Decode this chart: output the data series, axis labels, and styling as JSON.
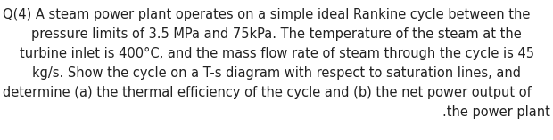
{
  "background_color": "#ffffff",
  "text_color": "#222222",
  "lines": [
    "Q(4) A steam power plant operates on a simple ideal Rankine cycle between the",
    "pressure limits of 3.5 MPa and 75kPa. The temperature of the steam at the",
    "turbine inlet is 400°C, and the mass flow rate of steam through the cycle is 45",
    "kg/s. Show the cycle on a T-s diagram with respect to saturation lines, and",
    "determine (a) the thermal efficiency of the cycle and (b) the net power output of",
    ".the power plant"
  ],
  "alignments": [
    "left",
    "center",
    "center",
    "center",
    "left",
    "right"
  ],
  "font_size": 10.5,
  "fig_width": 6.2,
  "fig_height": 1.58,
  "dpi": 100
}
